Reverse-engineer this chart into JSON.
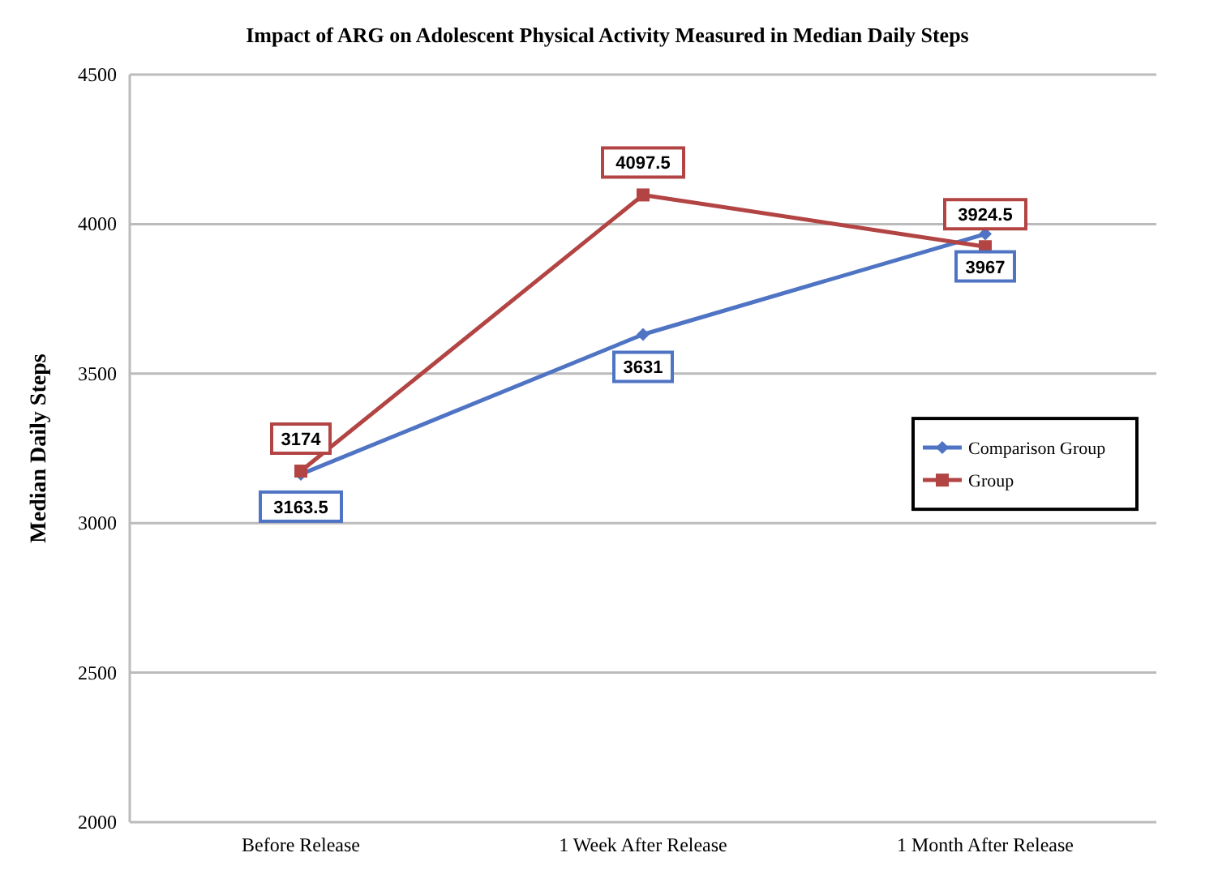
{
  "chart_data": {
    "type": "line",
    "title": "Impact of ARG on Adolescent Physical Activity Measured in Median Daily Steps",
    "ylabel": "Median Daily Steps",
    "categories": [
      "Before Release",
      "1 Week After Release",
      "1 Month After Release"
    ],
    "series": [
      {
        "name": "Comparison Group",
        "color": "#4f74c4",
        "values": [
          3163.5,
          3631,
          3967
        ],
        "marker": "diamond"
      },
      {
        "name": "Group",
        "color": "#b34444",
        "values": [
          3174,
          4097.5,
          3924.5
        ],
        "marker": "square"
      }
    ],
    "ylim": [
      2000,
      4500
    ],
    "yticks": [
      2000,
      2500,
      3000,
      3500,
      4000,
      4500
    ],
    "grid": "y",
    "legend": "right",
    "data_labels": true
  }
}
